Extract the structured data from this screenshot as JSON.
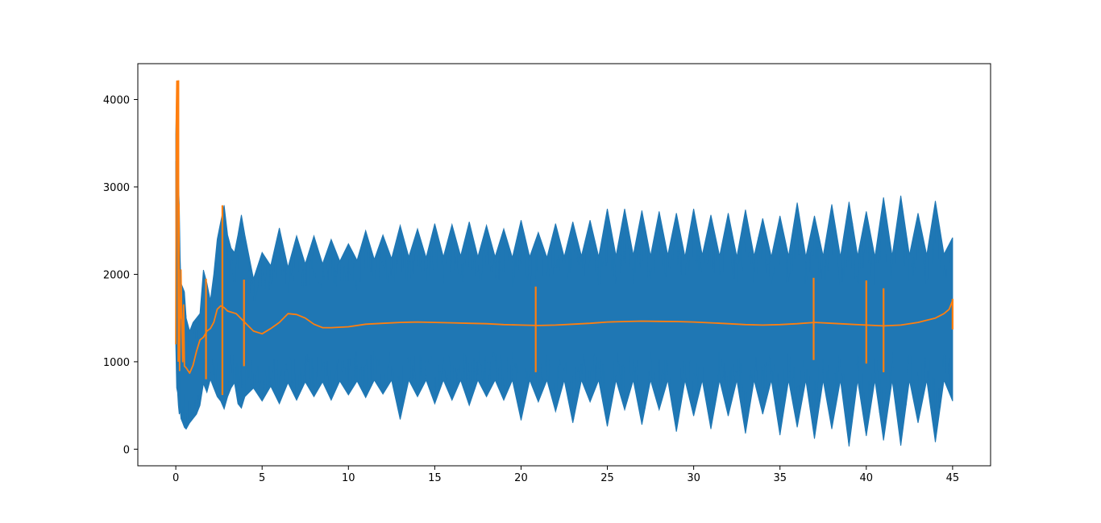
{
  "chart_data": {
    "type": "line",
    "title": "",
    "xlabel": "",
    "ylabel": "",
    "xlim": [
      -2.2,
      47.2
    ],
    "ylim": [
      -190,
      4410
    ],
    "xticks": [
      0,
      5,
      10,
      15,
      20,
      25,
      30,
      35,
      40,
      45
    ],
    "xtick_labels": [
      "0",
      "5",
      "10",
      "15",
      "20",
      "25",
      "30",
      "35",
      "40",
      "45"
    ],
    "yticks": [
      0,
      1000,
      2000,
      3000,
      4000
    ],
    "ytick_labels": [
      "0",
      "1000",
      "2000",
      "3000",
      "4000"
    ],
    "grid": false,
    "series": [
      {
        "color": "#1f77b4",
        "style": "dense oscillating signal (envelope of min/max)",
        "x": [
          0,
          0.05,
          0.1,
          0.15,
          0.2,
          0.25,
          0.3,
          0.4,
          0.5,
          0.6,
          0.8,
          1.0,
          1.2,
          1.4,
          1.6,
          1.8,
          2.0,
          2.2,
          2.4,
          2.6,
          2.8,
          3.0,
          3.2,
          3.4,
          3.6,
          3.8,
          4.0,
          4.5,
          5.0,
          5.5,
          6.0,
          6.5,
          7.0,
          7.5,
          8.0,
          8.5,
          9.0,
          9.5,
          10.0,
          10.5,
          11.0,
          11.5,
          12.0,
          12.5,
          13.0,
          13.5,
          14.0,
          14.5,
          15.0,
          15.5,
          16.0,
          16.5,
          17.0,
          17.5,
          18.0,
          18.5,
          19.0,
          19.5,
          20.0,
          20.5,
          21.0,
          21.5,
          22.0,
          22.5,
          23.0,
          23.5,
          24.0,
          24.5,
          25.0,
          25.5,
          26.0,
          26.5,
          27.0,
          27.5,
          28.0,
          28.5,
          29.0,
          29.5,
          30.0,
          30.5,
          31.0,
          31.5,
          32.0,
          32.5,
          33.0,
          33.5,
          34.0,
          34.5,
          35.0,
          35.5,
          36.0,
          36.5,
          37.0,
          37.5,
          38.0,
          38.5,
          39.0,
          39.5,
          40.0,
          40.5,
          41.0,
          41.5,
          42.0,
          42.5,
          43.0,
          43.5,
          44.0,
          44.5,
          45.0
        ],
        "max": [
          3600,
          4100,
          4080,
          3100,
          2800,
          2200,
          1900,
          1850,
          1800,
          1500,
          1350,
          1450,
          1500,
          1550,
          2050,
          1900,
          1700,
          2000,
          2400,
          2600,
          2790,
          2450,
          2300,
          2250,
          2450,
          2680,
          2450,
          1950,
          2250,
          2100,
          2530,
          2080,
          2440,
          2120,
          2440,
          2120,
          2400,
          2150,
          2350,
          2160,
          2500,
          2170,
          2450,
          2180,
          2560,
          2200,
          2520,
          2190,
          2580,
          2200,
          2570,
          2210,
          2600,
          2200,
          2560,
          2200,
          2520,
          2190,
          2620,
          2200,
          2480,
          2190,
          2580,
          2200,
          2600,
          2210,
          2620,
          2200,
          2750,
          2210,
          2750,
          2220,
          2730,
          2210,
          2720,
          2220,
          2700,
          2200,
          2750,
          2220,
          2680,
          2210,
          2700,
          2200,
          2740,
          2210,
          2640,
          2200,
          2670,
          2210,
          2820,
          2200,
          2670,
          2210,
          2800,
          2200,
          2830,
          2210,
          2720,
          2200,
          2880,
          2210,
          2900,
          2220,
          2700,
          2220,
          2840,
          2230,
          2420
        ],
        "min": [
          1200,
          700,
          650,
          500,
          400,
          450,
          350,
          300,
          250,
          230,
          300,
          350,
          400,
          500,
          750,
          650,
          800,
          700,
          600,
          550,
          460,
          600,
          700,
          760,
          520,
          470,
          600,
          700,
          550,
          720,
          520,
          760,
          560,
          770,
          600,
          770,
          560,
          780,
          620,
          780,
          590,
          790,
          630,
          790,
          340,
          790,
          600,
          790,
          520,
          790,
          560,
          790,
          500,
          790,
          600,
          790,
          560,
          790,
          330,
          790,
          540,
          790,
          430,
          790,
          300,
          790,
          540,
          790,
          260,
          790,
          450,
          790,
          280,
          790,
          450,
          790,
          200,
          790,
          380,
          790,
          230,
          790,
          380,
          790,
          180,
          790,
          400,
          790,
          160,
          790,
          250,
          790,
          120,
          790,
          230,
          790,
          30,
          790,
          150,
          790,
          100,
          790,
          40,
          790,
          300,
          790,
          80,
          790,
          550
        ],
        "min_pulse_dx": 0.3
      },
      {
        "color": "#ff7f0e",
        "style": "smoothed trend line",
        "x": [
          0,
          0.03,
          0.06,
          0.1,
          0.12,
          0.15,
          0.18,
          0.2,
          0.22,
          0.25,
          0.28,
          0.3,
          0.35,
          0.4,
          0.45,
          0.5,
          0.6,
          0.8,
          1.0,
          1.2,
          1.4,
          1.6,
          1.8,
          2.0,
          2.2,
          2.4,
          2.6,
          2.8,
          3.0,
          3.5,
          4.0,
          4.5,
          5.0,
          5.5,
          6.0,
          6.5,
          7.0,
          7.5,
          8.0,
          8.5,
          9.0,
          10.0,
          11.0,
          12.0,
          13.0,
          14.0,
          15.0,
          16.0,
          17.0,
          18.0,
          19.0,
          20.0,
          21.0,
          22.0,
          23.0,
          24.0,
          25.0,
          26.0,
          27.0,
          28.0,
          29.0,
          30.0,
          31.0,
          32.0,
          33.0,
          34.0,
          35.0,
          36.0,
          37.0,
          38.0,
          39.0,
          40.0,
          41.0,
          42.0,
          43.0,
          44.0,
          44.5,
          44.8,
          45.0
        ],
        "y": [
          1200,
          3800,
          4210,
          4200,
          2500,
          1500,
          2800,
          1300,
          900,
          1700,
          1500,
          2050,
          1450,
          1000,
          1650,
          950,
          930,
          870,
          960,
          1120,
          1250,
          1280,
          1350,
          1380,
          1450,
          1600,
          1640,
          1620,
          1580,
          1550,
          1450,
          1350,
          1320,
          1380,
          1450,
          1550,
          1540,
          1500,
          1430,
          1390,
          1390,
          1400,
          1430,
          1440,
          1450,
          1455,
          1450,
          1445,
          1440,
          1435,
          1425,
          1420,
          1415,
          1420,
          1430,
          1440,
          1455,
          1460,
          1465,
          1462,
          1460,
          1455,
          1445,
          1435,
          1425,
          1420,
          1425,
          1435,
          1450,
          1440,
          1430,
          1420,
          1410,
          1420,
          1450,
          1500,
          1550,
          1600,
          1700
        ],
        "spikes": [
          {
            "x": 0.15,
            "y_min": 1000,
            "y_max": 4220
          },
          {
            "x": 1.75,
            "y_min": 800,
            "y_max": 1950
          },
          {
            "x": 2.7,
            "y_min": 620,
            "y_max": 2790
          },
          {
            "x": 3.95,
            "y_min": 950,
            "y_max": 1940
          },
          {
            "x": 20.85,
            "y_min": 880,
            "y_max": 1860
          },
          {
            "x": 36.95,
            "y_min": 1020,
            "y_max": 1960
          },
          {
            "x": 40.0,
            "y_min": 980,
            "y_max": 1930
          },
          {
            "x": 41.0,
            "y_min": 880,
            "y_max": 1840
          },
          {
            "x": 45.0,
            "y_min": 1370,
            "y_max": 1720
          }
        ]
      }
    ]
  }
}
